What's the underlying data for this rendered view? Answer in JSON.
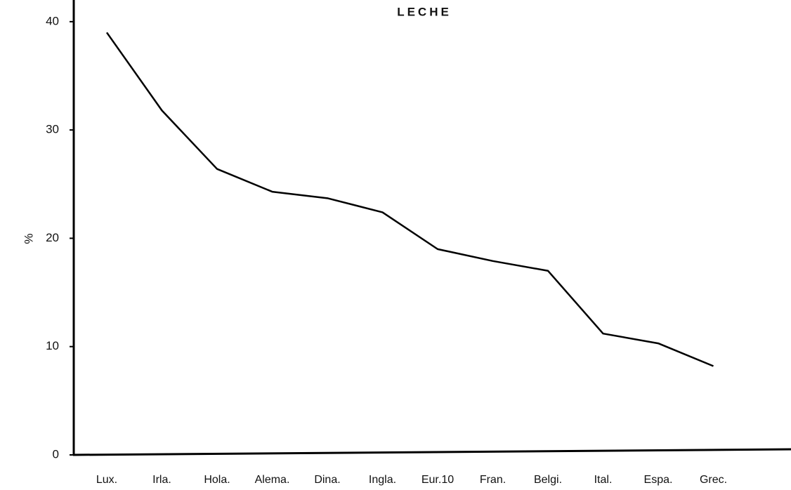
{
  "chart_data": {
    "type": "line",
    "title": "LECHE",
    "y_label": "%",
    "categories": [
      "Lux.",
      "Irla.",
      "Hola.",
      "Alema.",
      "Dina.",
      "Ingla.",
      "Eur.10",
      "Fran.",
      "Belgi.",
      "Ital.",
      "Espa.",
      "Grec."
    ],
    "values": [
      39.0,
      31.8,
      26.4,
      24.3,
      23.7,
      22.4,
      19.0,
      17.9,
      17.0,
      11.2,
      10.3,
      8.2
    ],
    "color": "#000000",
    "ylim": [
      0,
      42
    ],
    "yticks": [
      0,
      10,
      20,
      30,
      40
    ],
    "grid": false
  }
}
